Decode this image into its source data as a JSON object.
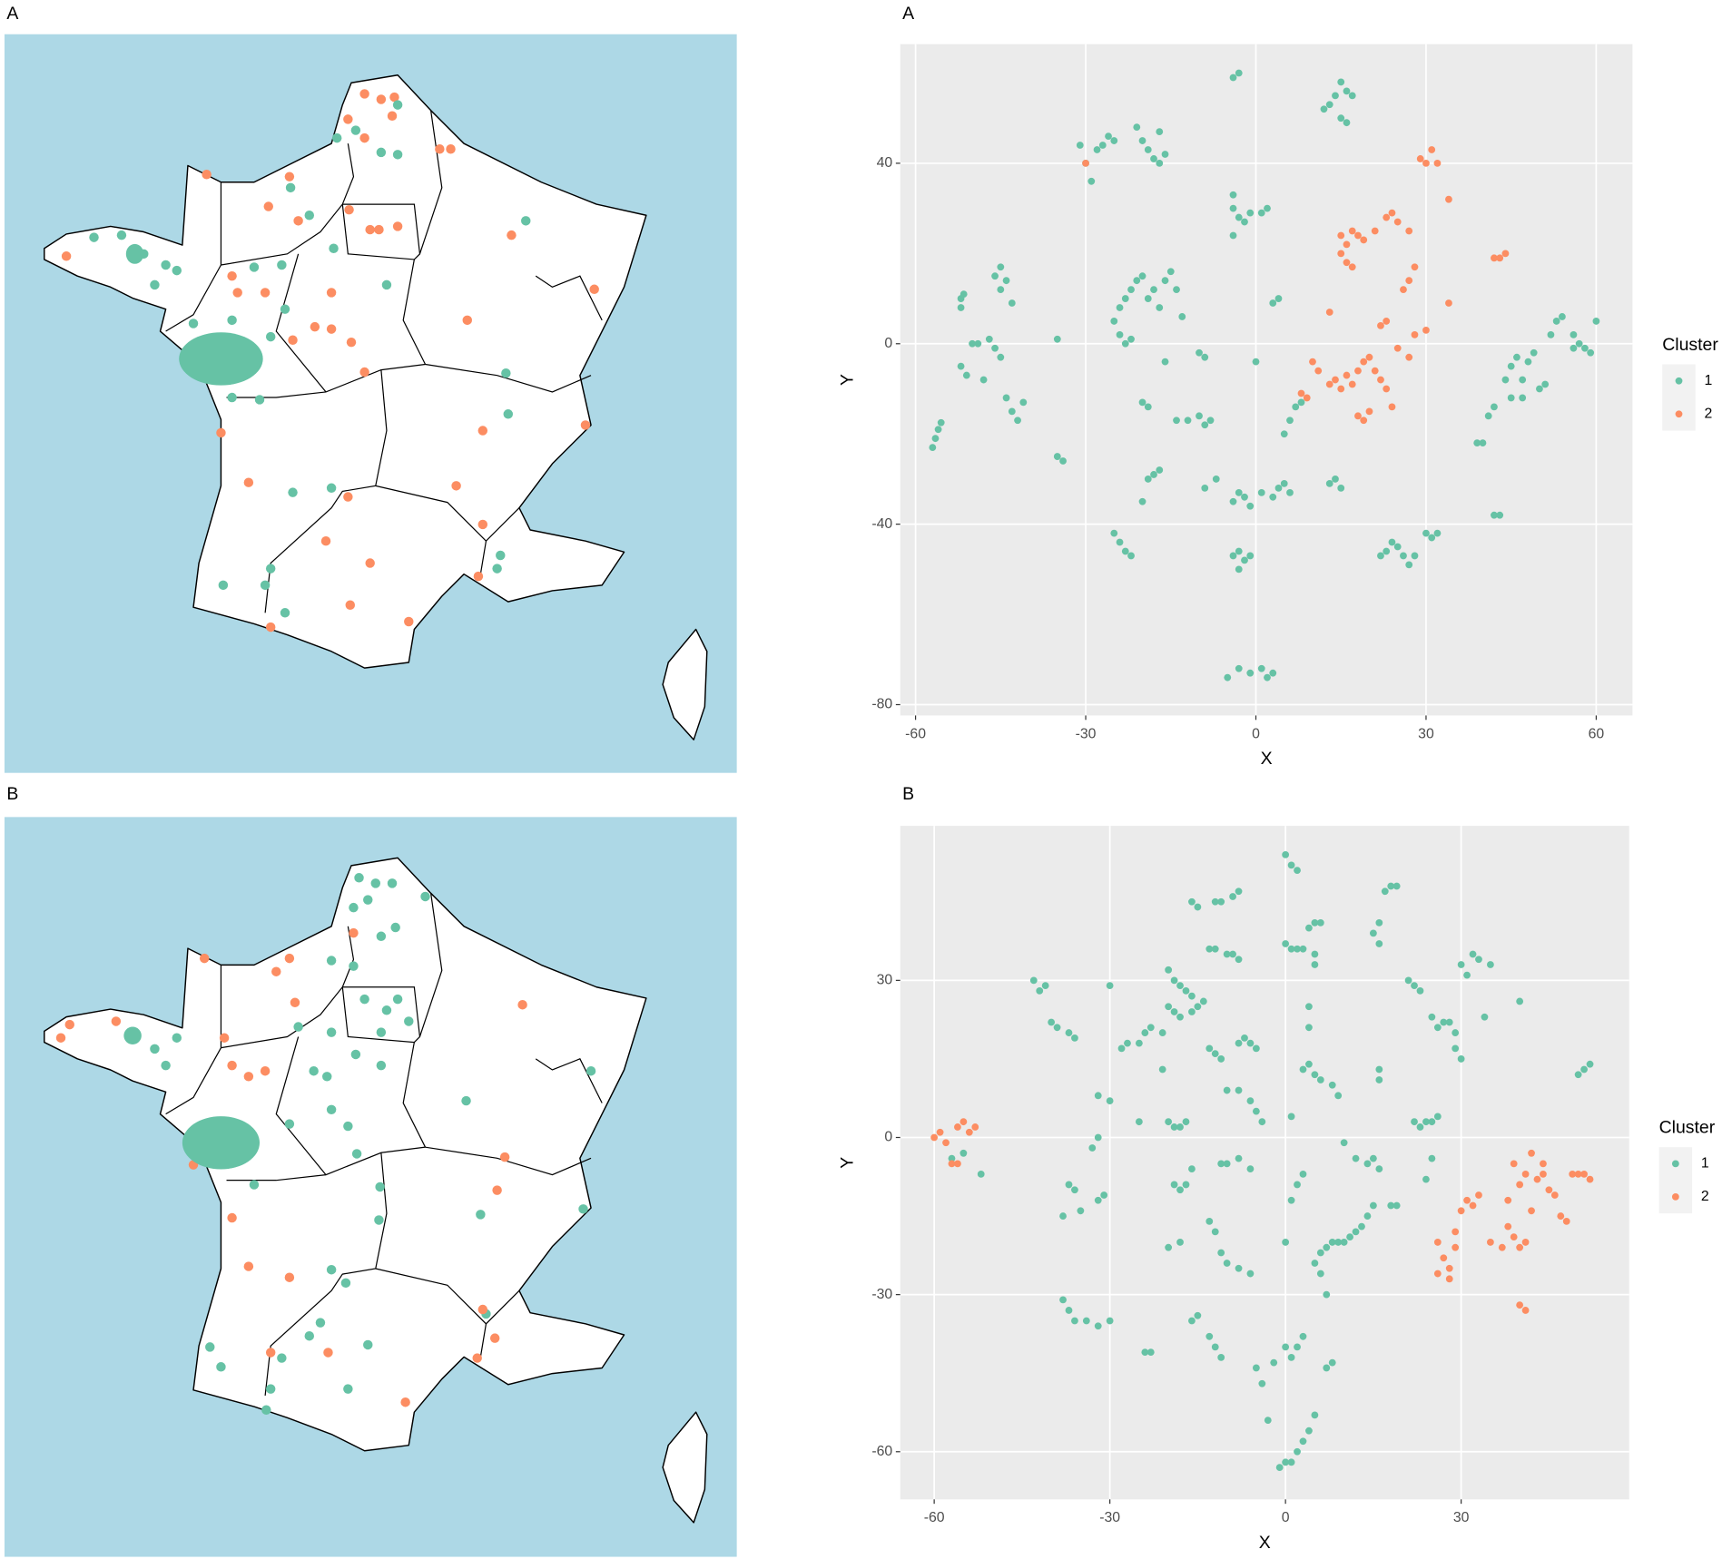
{
  "map_panels": [
    {
      "label": "A"
    },
    {
      "label": "B"
    }
  ],
  "chart_data": [
    {
      "type": "scatter",
      "label": "A",
      "xlabel": "X",
      "ylabel": "Y",
      "xlim": [
        -62.7,
        66.4
      ],
      "ylim": [
        -82.4,
        66.4
      ],
      "xticks": [
        -60,
        -30,
        0,
        30,
        60
      ],
      "yticks": [
        -80,
        -40,
        0,
        40
      ],
      "grid": true,
      "legend_title": "Cluster",
      "legend": "right",
      "series": [
        {
          "name": "1",
          "color": "#66c2a5",
          "x": [
            -57,
            -56.5,
            -56,
            -55.5,
            -52,
            -52,
            -51.5,
            -52,
            -51,
            -50,
            -49,
            -48,
            -47,
            -46,
            -45,
            -44,
            -43,
            -42,
            -41,
            -46,
            -45,
            -44,
            -45,
            -43,
            -35,
            -34,
            -35,
            -31,
            -30,
            -29,
            -28,
            -27,
            -26,
            -25,
            -21,
            -20,
            -19,
            -18,
            -17,
            -17,
            -16,
            -25,
            -24,
            -23,
            -22,
            -21,
            -20,
            -19,
            -18,
            -17,
            -16,
            -15,
            -14,
            -13,
            -24,
            -23,
            -22,
            -16,
            -20,
            -19,
            -14,
            -9,
            -8,
            -10,
            -9,
            -19,
            -18,
            -17,
            -20,
            -25,
            -24,
            -23,
            -22,
            -9,
            -4,
            -3,
            -2,
            -1,
            -3,
            -4,
            -3,
            -2,
            -1,
            1,
            3,
            4,
            5,
            6,
            -4,
            -4,
            -3,
            -2,
            -1,
            1,
            2,
            -4,
            -4,
            -3,
            12,
            13,
            14,
            15,
            16,
            17,
            15,
            16,
            3,
            4,
            0,
            5,
            6,
            7,
            8,
            13,
            14,
            15,
            22,
            23,
            24,
            25,
            26,
            27,
            28,
            30,
            31,
            32,
            39,
            40,
            41,
            42,
            42,
            43,
            45,
            46,
            47,
            48,
            49,
            50,
            51,
            52,
            53,
            54,
            44,
            45,
            47,
            56,
            57,
            58,
            59,
            60,
            56,
            -5,
            -3,
            -1,
            1,
            2,
            3,
            -7,
            -12,
            -10
          ],
          "y": [
            -23,
            -21,
            -19,
            -17.5,
            10,
            8,
            11,
            -5,
            -7,
            0,
            0,
            -8,
            1,
            -1,
            -3,
            -12,
            -15,
            -17,
            -13,
            15,
            17,
            14,
            12,
            9,
            -25,
            -26,
            1,
            44,
            40,
            36,
            43,
            44,
            46,
            45,
            48,
            45,
            43,
            41,
            47,
            40,
            42,
            5,
            8,
            10,
            12,
            14,
            15,
            10,
            12,
            8,
            14,
            16,
            12,
            6,
            2,
            0,
            1,
            -4,
            -13,
            -14,
            -17,
            -18,
            -17,
            -2,
            -3,
            -30,
            -29,
            -28,
            -35,
            -42,
            -44,
            -46,
            -47,
            -32,
            -47,
            -46,
            -48,
            -47,
            -50,
            -35,
            -33,
            -34,
            -36,
            -33,
            -34,
            -32,
            -31,
            -33,
            33,
            30,
            28,
            27,
            29,
            29,
            30,
            24,
            59,
            60,
            52,
            53,
            55,
            58,
            56,
            55,
            50,
            49,
            9,
            10,
            -4,
            -20,
            -17,
            -14,
            -13,
            -31,
            -30,
            -32,
            -47,
            -46,
            -44,
            -45,
            -47,
            -49,
            -47,
            -42,
            -43,
            -42,
            -22,
            -22,
            -16,
            -14,
            -38,
            -38,
            -5,
            -3,
            -8,
            -4,
            -2,
            -10,
            -9,
            2,
            5,
            6,
            -8,
            -12,
            -12,
            -1,
            0,
            -1,
            -2,
            5,
            2,
            -74,
            -72,
            -73,
            -72,
            -74,
            -73,
            -30,
            -17,
            -16
          ]
        },
        {
          "name": "2",
          "color": "#fc8d62",
          "x": [
            -30,
            29,
            30,
            31,
            32,
            34,
            15,
            16,
            17,
            18,
            19,
            15,
            16,
            17,
            21,
            23,
            24,
            25,
            27,
            28,
            27,
            26,
            34,
            42,
            43,
            44,
            13,
            10,
            11,
            13,
            14,
            15,
            16,
            17,
            18,
            19,
            20,
            21,
            22,
            23,
            22,
            23,
            25,
            27,
            28,
            30,
            18,
            19,
            20,
            24,
            8,
            9
          ],
          "y": [
            40,
            41,
            40,
            43,
            40,
            32,
            24,
            22,
            25,
            24,
            23,
            20,
            18,
            17,
            25,
            28,
            29,
            27,
            25,
            17,
            14,
            12,
            9,
            19,
            19,
            20,
            7,
            -4,
            -6,
            -9,
            -8,
            -10,
            -7,
            -9,
            -6,
            -4,
            -3,
            -6,
            -8,
            -10,
            4,
            5,
            -1,
            -3,
            2,
            3,
            -16,
            -17,
            -15,
            -14,
            -11,
            -12
          ]
        }
      ]
    },
    {
      "type": "scatter",
      "label": "B",
      "xlabel": "X",
      "ylabel": "Y",
      "xlim": [
        -65.8,
        58.7
      ],
      "ylim": [
        -69.1,
        59.5
      ],
      "xticks": [
        -60,
        -30,
        0,
        30
      ],
      "yticks": [
        -60,
        -30,
        0,
        30
      ],
      "grid": true,
      "legend_title": "Cluster",
      "legend": "right",
      "series": [
        {
          "name": "1",
          "color": "#66c2a5",
          "x": [
            -57,
            -55,
            -52,
            -43,
            -42,
            -41,
            -40,
            -39,
            -37,
            -36,
            -37,
            -36,
            -35,
            -38,
            -32,
            -31,
            -33,
            -32,
            -32,
            -30,
            -38,
            -37,
            -36,
            -34,
            -32,
            -30,
            -30,
            -28,
            -27,
            -25,
            -24,
            -23,
            -24,
            -23,
            -25,
            -21,
            -21,
            -20,
            -19,
            -18,
            -16,
            -15,
            -14,
            -20,
            -19,
            -18,
            -17,
            -16,
            -20,
            -19,
            -18,
            -17,
            -16,
            -17,
            -18,
            -19,
            -20,
            -18,
            -16,
            -15,
            -13,
            -12,
            -11,
            -16,
            -15,
            -12,
            -11,
            -9,
            -8,
            -13,
            -12,
            -10,
            -9,
            -8,
            -13,
            -12,
            -11,
            -8,
            -7,
            -6,
            -5,
            -10,
            -8,
            -6,
            -5,
            -4,
            -11,
            -10,
            -8,
            -6,
            -13,
            -12,
            -11,
            -10,
            -8,
            -6,
            -5,
            -4,
            -3,
            -2,
            0,
            1,
            2,
            3,
            -1,
            0,
            1,
            2,
            3,
            4,
            5,
            7,
            8,
            0,
            1,
            2,
            0,
            1,
            2,
            3,
            4,
            5,
            6,
            5,
            5,
            4,
            4,
            3,
            4,
            5,
            6,
            1,
            3,
            2,
            1,
            0,
            7,
            6,
            5,
            6,
            7,
            8,
            9,
            10,
            11,
            12,
            13,
            14,
            8,
            9,
            10,
            12,
            14,
            15,
            16,
            16,
            16,
            15,
            16,
            17,
            18,
            19,
            16,
            21,
            22,
            23,
            22,
            23,
            24,
            25,
            26,
            25,
            24,
            15,
            18,
            19,
            25,
            26,
            27,
            28,
            29,
            30,
            29,
            30,
            31,
            32,
            33,
            35,
            34,
            40,
            50,
            51,
            52
          ],
          "y": [
            -4,
            -3,
            -7,
            30,
            28,
            29,
            22,
            21,
            20,
            19,
            -9,
            -10,
            -14,
            -15,
            -12,
            -11,
            -2,
            0,
            8,
            7,
            -31,
            -33,
            -35,
            -35,
            -36,
            -35,
            29,
            17,
            18,
            18,
            20,
            21,
            -41,
            -41,
            3,
            13,
            20,
            25,
            24,
            23,
            24,
            25,
            26,
            32,
            30,
            29,
            28,
            27,
            3,
            2,
            2,
            3,
            -6,
            -9,
            -10,
            -9,
            -21,
            -20,
            -35,
            -34,
            -38,
            -40,
            -42,
            45,
            44,
            45,
            45,
            46,
            47,
            36,
            36,
            35,
            35,
            34,
            17,
            16,
            15,
            18,
            19,
            18,
            17,
            9,
            9,
            7,
            5,
            3,
            -5,
            -5,
            -4,
            -6,
            -16,
            -18,
            -22,
            -24,
            -25,
            -26,
            -44,
            -47,
            -54,
            -43,
            -40,
            -42,
            -40,
            -38,
            -63,
            -62,
            -62,
            -60,
            -58,
            -56,
            -53,
            -44,
            -43,
            54,
            52,
            51,
            37,
            36,
            36,
            36,
            40,
            41,
            41,
            35,
            33,
            25,
            21,
            13,
            14,
            12,
            11,
            4,
            -7,
            -9,
            -12,
            -20,
            -21,
            -22,
            -24,
            -26,
            -30,
            -20,
            -20,
            -20,
            -19,
            -18,
            -17,
            -15,
            10,
            8,
            -1,
            -4,
            -5,
            -4,
            -6,
            11,
            13,
            39,
            41,
            47,
            48,
            48,
            37,
            30,
            29,
            28,
            3,
            2,
            3,
            3,
            4,
            -4,
            -8,
            -13,
            -13,
            -13,
            23,
            21,
            22,
            22,
            17,
            15,
            20,
            33,
            31,
            35,
            34,
            33,
            23,
            26,
            12,
            13,
            14
          ]
        },
        {
          "name": "2",
          "color": "#fc8d62",
          "x": [
            -60,
            -59,
            -58,
            -56,
            -55,
            -54,
            -53,
            -57,
            -56,
            26,
            27,
            28,
            29,
            30,
            31,
            32,
            33,
            29,
            28,
            26,
            35,
            37,
            38,
            39,
            40,
            41,
            42,
            43,
            44,
            45,
            46,
            47,
            48,
            49,
            50,
            51,
            52,
            44,
            42,
            41,
            39,
            40,
            41,
            40,
            38
          ],
          "y": [
            0,
            1,
            -1,
            2,
            3,
            1,
            2,
            -5,
            -5,
            -20,
            -23,
            -25,
            -18,
            -14,
            -12,
            -13,
            -11,
            -21,
            -27,
            -26,
            -20,
            -21,
            -17,
            -19,
            -21,
            -20,
            -14,
            -8,
            -7,
            -10,
            -11,
            -15,
            -16,
            -7,
            -7,
            -7,
            -8,
            -5,
            -3,
            -7,
            -5,
            -32,
            -33,
            -9,
            -12
          ]
        }
      ]
    }
  ]
}
